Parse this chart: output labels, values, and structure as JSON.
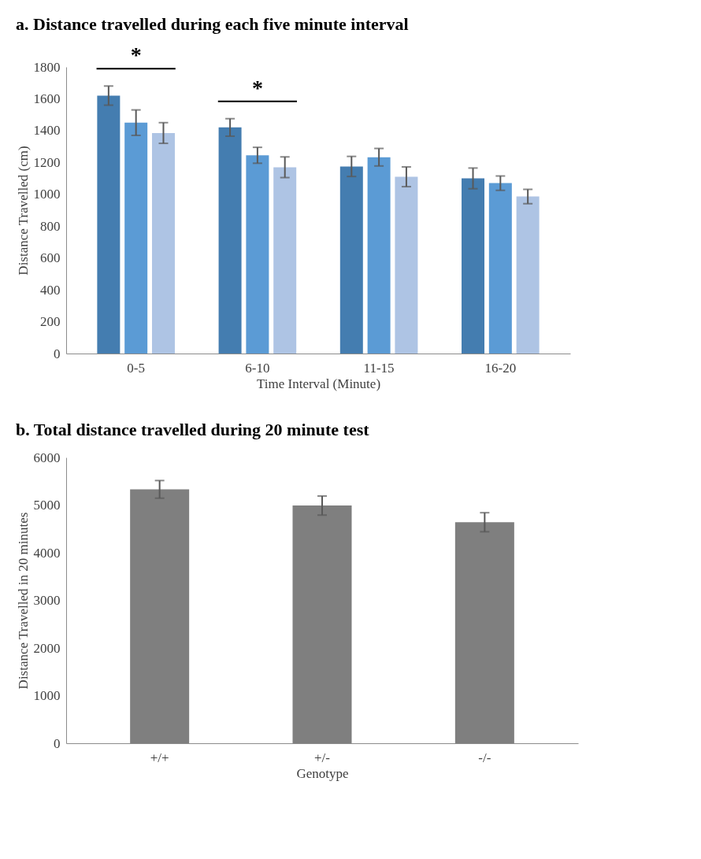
{
  "chart_data": [
    {
      "type": "bar",
      "title": "a. Distance travelled during each five minute interval",
      "xlabel": "Time Interval (Minute)",
      "ylabel": "Distance Travelled (cm)",
      "categories": [
        "0-5",
        "6-10",
        "11-15",
        "16-20"
      ],
      "series": [
        {
          "color": "#447db0",
          "values": [
            1620,
            1420,
            1175,
            1100
          ],
          "errors": [
            60,
            55,
            63,
            65
          ]
        },
        {
          "color": "#5b9bd5",
          "values": [
            1450,
            1245,
            1233,
            1070
          ],
          "errors": [
            80,
            50,
            55,
            45
          ]
        },
        {
          "color": "#aec4e4",
          "values": [
            1385,
            1170,
            1110,
            986
          ],
          "errors": [
            65,
            65,
            62,
            45
          ]
        }
      ],
      "ylim": [
        0,
        1800
      ],
      "yticks": [
        0,
        200,
        400,
        600,
        800,
        1000,
        1200,
        1400,
        1600,
        1800
      ],
      "grid": false,
      "legend": false,
      "annotations": [
        "*",
        "*"
      ]
    },
    {
      "type": "bar",
      "title": "b. Total distance travelled during 20 minute test",
      "xlabel": "Genotype",
      "ylabel": "Distance Travelled in 20 minutes",
      "categories": [
        "+/+",
        "+/-",
        "-/-"
      ],
      "series": [
        {
          "color": "#7f7f7f",
          "values": [
            5330,
            4990,
            4640
          ],
          "errors": [
            185,
            200,
            200
          ]
        }
      ],
      "ylim": [
        0,
        6000
      ],
      "yticks": [
        0,
        1000,
        2000,
        3000,
        4000,
        5000,
        6000
      ],
      "grid": false,
      "legend": false
    }
  ]
}
